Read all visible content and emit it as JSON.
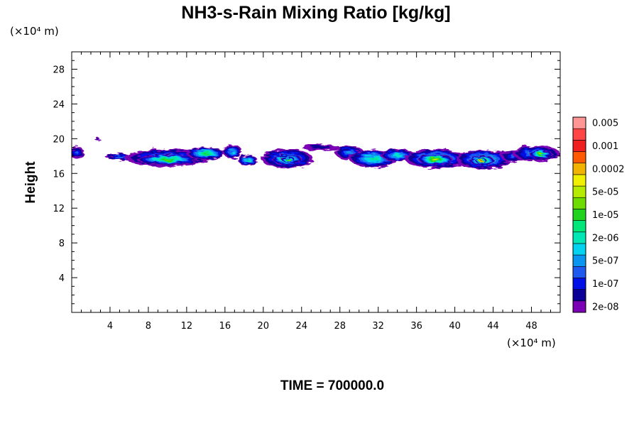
{
  "chart_data": {
    "type": "heatmap",
    "title": "NH3-s-Rain Mixing Ratio [kg/kg]",
    "ylabel": "Height",
    "x_unit": "(×10⁴ m)",
    "y_unit": "(×10⁴ m)",
    "xlim": [
      0,
      51
    ],
    "ylim": [
      0,
      30
    ],
    "x_ticks": [
      4,
      8,
      12,
      16,
      20,
      24,
      28,
      32,
      36,
      40,
      44,
      48
    ],
    "y_ticks": [
      4,
      8,
      12,
      16,
      20,
      24,
      28
    ],
    "footer": "TIME = 700000.0",
    "colorbar": {
      "colors": [
        "#7b00b4",
        "#0a0096",
        "#0010e6",
        "#1e5af0",
        "#0a96f0",
        "#00d2f0",
        "#00e6b4",
        "#00e678",
        "#1ed21e",
        "#6edc00",
        "#b4eb00",
        "#f0f000",
        "#f0b400",
        "#ff5a00",
        "#f01e1e",
        "#ff4646",
        "#ff9696"
      ],
      "labels": [
        "2e-08",
        "1e-07",
        "5e-07",
        "2e-06",
        "1e-05",
        "5e-05",
        "0.0002",
        "0.001",
        "0.005"
      ]
    },
    "field_blobs": [
      {
        "x": 0.5,
        "y": 18.4,
        "rx": 0.8,
        "ry": 0.7,
        "level": 3
      },
      {
        "x": 2.7,
        "y": 19.9,
        "rx": 0.3,
        "ry": 0.15,
        "level": 1
      },
      {
        "x": 5.0,
        "y": 17.9,
        "rx": 1.5,
        "ry": 0.35,
        "level": 4
      },
      {
        "x": 10.0,
        "y": 17.8,
        "rx": 4.5,
        "ry": 1.0,
        "level": 5
      },
      {
        "x": 10.0,
        "y": 17.6,
        "rx": 3.2,
        "ry": 0.6,
        "level": 9
      },
      {
        "x": 14.0,
        "y": 18.3,
        "rx": 2.0,
        "ry": 0.7,
        "level": 8
      },
      {
        "x": 16.8,
        "y": 18.5,
        "rx": 1.0,
        "ry": 0.8,
        "level": 5
      },
      {
        "x": 18.4,
        "y": 17.5,
        "rx": 1.0,
        "ry": 0.6,
        "level": 7
      },
      {
        "x": 22.5,
        "y": 17.7,
        "rx": 2.7,
        "ry": 1.1,
        "level": 6
      },
      {
        "x": 22.5,
        "y": 17.6,
        "rx": 1.6,
        "ry": 0.6,
        "level": 10
      },
      {
        "x": 22.6,
        "y": 17.6,
        "rx": 0.7,
        "ry": 0.3,
        "level": 12
      },
      {
        "x": 26.0,
        "y": 19.0,
        "rx": 2.0,
        "ry": 0.35,
        "level": 1
      },
      {
        "x": 29.0,
        "y": 18.4,
        "rx": 1.5,
        "ry": 0.8,
        "level": 4
      },
      {
        "x": 31.5,
        "y": 17.7,
        "rx": 2.5,
        "ry": 1.0,
        "level": 7
      },
      {
        "x": 34.0,
        "y": 18.1,
        "rx": 1.8,
        "ry": 0.7,
        "level": 6
      },
      {
        "x": 38.0,
        "y": 17.7,
        "rx": 3.2,
        "ry": 1.1,
        "level": 7
      },
      {
        "x": 38.0,
        "y": 17.6,
        "rx": 1.8,
        "ry": 0.6,
        "level": 11
      },
      {
        "x": 43.0,
        "y": 17.6,
        "rx": 2.8,
        "ry": 1.1,
        "level": 7
      },
      {
        "x": 42.8,
        "y": 17.5,
        "rx": 1.3,
        "ry": 0.6,
        "level": 12
      },
      {
        "x": 42.7,
        "y": 17.5,
        "rx": 0.6,
        "ry": 0.3,
        "level": 14
      },
      {
        "x": 46.0,
        "y": 18.0,
        "rx": 1.2,
        "ry": 0.7,
        "level": 3
      },
      {
        "x": 48.5,
        "y": 18.3,
        "rx": 2.5,
        "ry": 0.9,
        "level": 5
      },
      {
        "x": 49.0,
        "y": 18.2,
        "rx": 1.2,
        "ry": 0.5,
        "level": 10
      }
    ]
  }
}
